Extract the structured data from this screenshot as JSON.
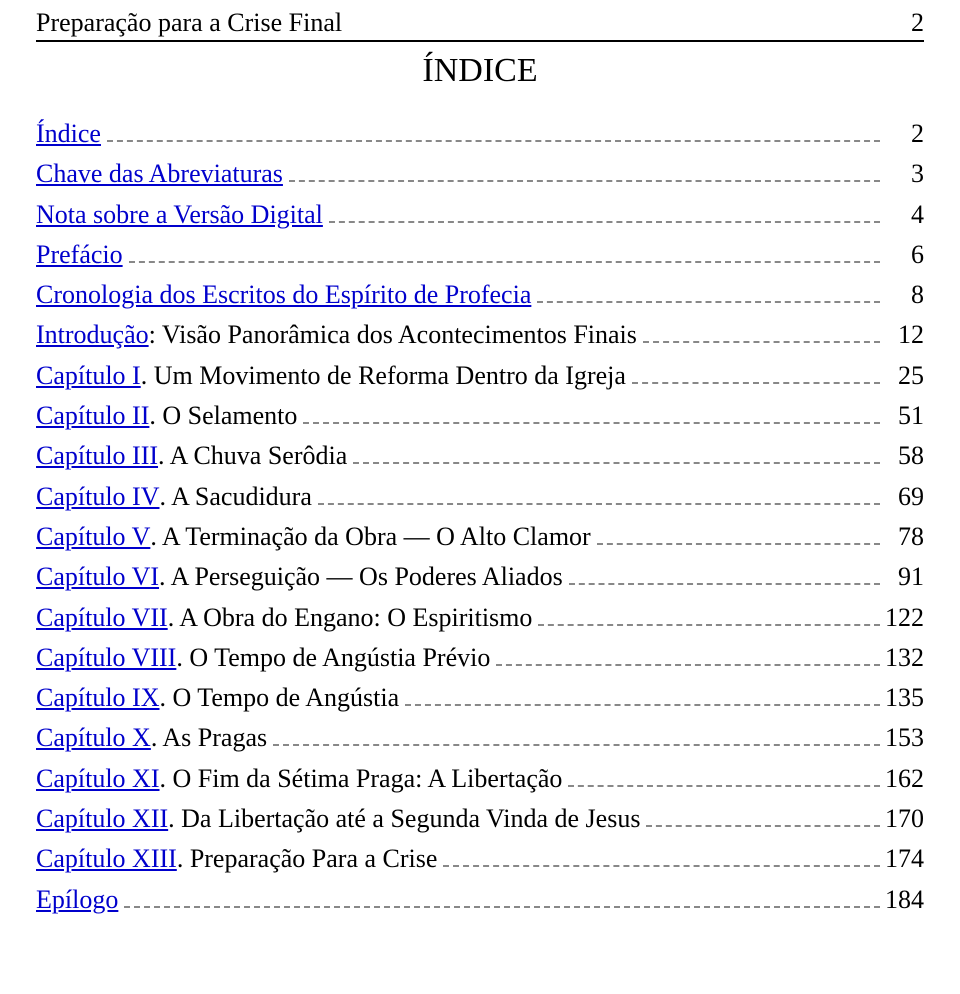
{
  "header": {
    "book_title": "Preparação para a Crise Final",
    "page_number": "2"
  },
  "title": "ÍNDICE",
  "toc": [
    {
      "link": "Índice",
      "rest": "",
      "page": "2"
    },
    {
      "link": "Chave das Abreviaturas",
      "rest": "",
      "page": "3"
    },
    {
      "link": "Nota sobre a Versão Digital",
      "rest": "",
      "page": "4"
    },
    {
      "link": "Prefácio",
      "rest": "",
      "page": "6"
    },
    {
      "link": "Cronologia dos Escritos do Espírito de Profecia",
      "rest": "",
      "page": "8"
    },
    {
      "link": "Introdução",
      "rest": ": Visão Panorâmica dos Acontecimentos Finais",
      "page": "12"
    },
    {
      "link": "Capítulo I",
      "rest": ". Um Movimento de Reforma Dentro da Igreja",
      "page": "25"
    },
    {
      "link": "Capítulo II",
      "rest": ". O Selamento",
      "page": "51"
    },
    {
      "link": "Capítulo III",
      "rest": ". A Chuva Serôdia",
      "page": "58"
    },
    {
      "link": "Capítulo IV",
      "rest": ". A Sacudidura",
      "page": "69"
    },
    {
      "link": "Capítulo V",
      "rest": ". A Terminação da Obra — O Alto Clamor",
      "page": "78"
    },
    {
      "link": "Capítulo VI",
      "rest": ". A Perseguição — Os Poderes Aliados",
      "page": "91"
    },
    {
      "link": "Capítulo VII",
      "rest": ". A Obra do Engano: O Espiritismo",
      "page": "122"
    },
    {
      "link": "Capítulo VIII",
      "rest": ". O Tempo de Angústia Prévio",
      "page": "132"
    },
    {
      "link": "Capítulo IX",
      "rest": ". O Tempo de Angústia",
      "page": "135"
    },
    {
      "link": "Capítulo X",
      "rest": ". As Pragas",
      "page": "153"
    },
    {
      "link": "Capítulo XI",
      "rest": ". O Fim da Sétima Praga: A Libertação",
      "page": "162"
    },
    {
      "link": "Capítulo XII",
      "rest": ". Da Libertação até a Segunda Vinda de Jesus",
      "page": "170"
    },
    {
      "link": "Capítulo XIII",
      "rest": ". Preparação Para a Crise",
      "page": "174"
    },
    {
      "link": "Epílogo",
      "rest": "",
      "page": "184"
    }
  ],
  "style": {
    "link_color": "#0000cc",
    "text_color": "#000000",
    "leader_color": "#888888",
    "background_color": "#ffffff",
    "body_fontsize": 26,
    "title_fontsize": 34,
    "font_family": "Times New Roman"
  }
}
